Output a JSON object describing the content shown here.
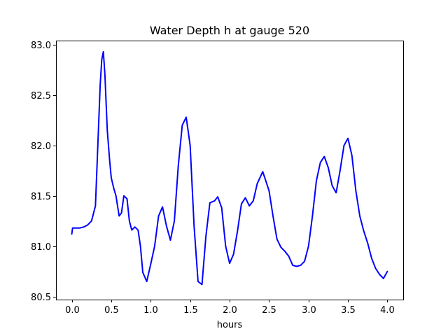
{
  "chart_data": {
    "type": "line",
    "title": "Water Depth h at gauge 520",
    "xlabel": "hours",
    "ylabel": "",
    "xlim": [
      -0.2,
      4.2
    ],
    "ylim": [
      80.47,
      83.04
    ],
    "xticks": [
      0.0,
      0.5,
      1.0,
      1.5,
      2.0,
      2.5,
      3.0,
      3.5,
      4.0
    ],
    "xtick_labels": [
      "0.0",
      "0.5",
      "1.0",
      "1.5",
      "2.0",
      "2.5",
      "3.0",
      "3.5",
      "4.0"
    ],
    "yticks": [
      80.5,
      81.0,
      81.5,
      82.0,
      82.5,
      83.0
    ],
    "ytick_labels": [
      "80.5",
      "81.0",
      "81.5",
      "82.0",
      "82.5",
      "83.0"
    ],
    "grid": false,
    "series": [
      {
        "color": "#0000ff",
        "x": [
          0.0,
          0.01,
          0.1,
          0.15,
          0.2,
          0.25,
          0.3,
          0.33,
          0.36,
          0.38,
          0.4,
          0.42,
          0.45,
          0.48,
          0.5,
          0.53,
          0.56,
          0.6,
          0.63,
          0.66,
          0.7,
          0.73,
          0.76,
          0.8,
          0.84,
          0.87,
          0.9,
          0.95,
          1.0,
          1.05,
          1.1,
          1.15,
          1.2,
          1.25,
          1.3,
          1.35,
          1.4,
          1.45,
          1.5,
          1.55,
          1.6,
          1.65,
          1.7,
          1.75,
          1.78,
          1.81,
          1.85,
          1.9,
          1.95,
          2.0,
          2.05,
          2.1,
          2.15,
          2.2,
          2.25,
          2.3,
          2.35,
          2.42,
          2.5,
          2.55,
          2.6,
          2.65,
          2.7,
          2.75,
          2.8,
          2.85,
          2.9,
          2.95,
          3.0,
          3.05,
          3.1,
          3.15,
          3.2,
          3.25,
          3.3,
          3.35,
          3.4,
          3.45,
          3.5,
          3.55,
          3.6,
          3.65,
          3.7,
          3.75,
          3.8,
          3.85,
          3.9,
          3.95,
          4.0
        ],
        "y": [
          81.12,
          81.18,
          81.18,
          81.19,
          81.21,
          81.25,
          81.4,
          82.0,
          82.6,
          82.85,
          82.93,
          82.7,
          82.15,
          81.85,
          81.68,
          81.58,
          81.5,
          81.3,
          81.33,
          81.5,
          81.47,
          81.25,
          81.16,
          81.19,
          81.16,
          81.0,
          80.74,
          80.65,
          80.82,
          81.0,
          81.3,
          81.39,
          81.2,
          81.06,
          81.25,
          81.8,
          82.2,
          82.28,
          82.0,
          81.2,
          80.65,
          80.62,
          81.1,
          81.43,
          81.44,
          81.45,
          81.49,
          81.38,
          81.0,
          80.83,
          80.92,
          81.15,
          81.42,
          81.48,
          81.4,
          81.45,
          81.62,
          81.74,
          81.55,
          81.3,
          81.07,
          80.99,
          80.95,
          80.9,
          80.81,
          80.8,
          80.81,
          80.85,
          81.0,
          81.3,
          81.65,
          81.83,
          81.89,
          81.78,
          81.6,
          81.53,
          81.75,
          82.0,
          82.07,
          81.9,
          81.55,
          81.3,
          81.15,
          81.03,
          80.88,
          80.78,
          80.72,
          80.68,
          80.75
        ]
      }
    ]
  }
}
